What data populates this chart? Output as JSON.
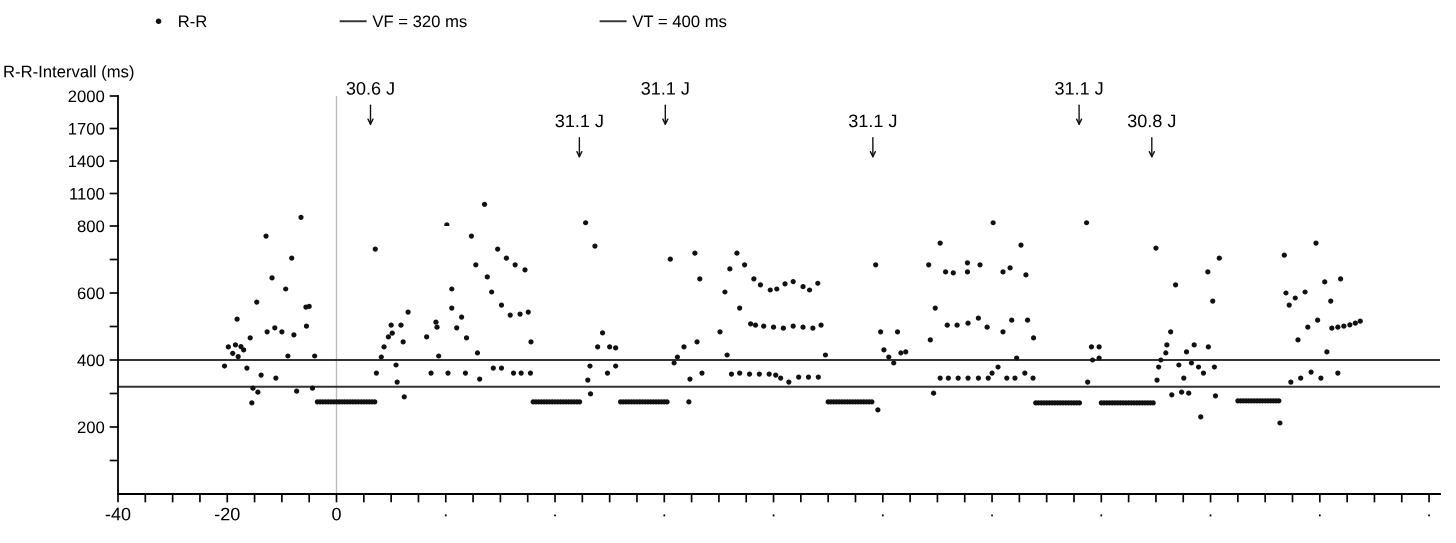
{
  "chart_data": [
    {
      "type": "scatter",
      "ylabel": "R-R-Intervall (ms)",
      "marker": "circle",
      "grid": false,
      "tick_labels": "y",
      "xlim": [
        -40,
        202
      ],
      "ylim": [
        800,
        2000
      ],
      "yticks": [
        1100,
        1400,
        1700,
        2000
      ],
      "ref_lines": [
        {
          "axis": "x",
          "value": 0,
          "color": "#bbbbbb"
        }
      ],
      "annotations": [
        "30.6 J",
        "31.1 J",
        "31.1 J",
        "31.1 J",
        "31.1 J",
        "30.8 J"
      ],
      "series": [
        {
          "color": "#111111",
          "x": [
            -6.5,
            20.2,
            27.1,
            45.6,
            120.2,
            137.3
          ],
          "values": [
            880,
            810,
            1000,
            830,
            830,
            830
          ]
        }
      ]
    },
    {
      "type": "scatter",
      "legend": "top left",
      "marker": "circle",
      "grid": false,
      "xlim": [
        -40,
        202
      ],
      "ylim": [
        0,
        800
      ],
      "xticks": [
        -40,
        {
          "value": -35,
          "label": null
        },
        {
          "value": -30,
          "label": null
        },
        {
          "value": -25,
          "label": null
        },
        -20,
        {
          "value": -15,
          "label": null
        },
        {
          "value": -10,
          "label": null
        },
        {
          "value": -5,
          "label": null
        },
        0,
        {
          "value": 5,
          "label": null
        },
        {
          "value": 10,
          "label": null
        },
        {
          "value": 15,
          "label": null
        },
        {
          "value": 20,
          "label": "·"
        },
        {
          "value": 25,
          "label": null
        },
        {
          "value": 30,
          "label": null
        },
        {
          "value": 35,
          "label": null
        },
        {
          "value": 40,
          "label": "·"
        },
        {
          "value": 45,
          "label": null
        },
        {
          "value": 50,
          "label": null
        },
        {
          "value": 55,
          "label": null
        },
        {
          "value": 60,
          "label": "·"
        },
        {
          "value": 65,
          "label": null
        },
        {
          "value": 70,
          "label": null
        },
        {
          "value": 75,
          "label": null
        },
        {
          "value": 80,
          "label": "·"
        },
        {
          "value": 85,
          "label": null
        },
        {
          "value": 90,
          "label": null
        },
        {
          "value": 95,
          "label": null
        },
        {
          "value": 100,
          "label": "·"
        },
        {
          "value": 105,
          "label": null
        },
        {
          "value": 110,
          "label": null
        },
        {
          "value": 115,
          "label": null
        },
        {
          "value": 120,
          "label": "·"
        },
        {
          "value": 125,
          "label": null
        },
        {
          "value": 130,
          "label": null
        },
        {
          "value": 135,
          "label": null
        },
        {
          "value": 140,
          "label": "·"
        },
        {
          "value": 145,
          "label": null
        },
        {
          "value": 150,
          "label": null
        },
        {
          "value": 155,
          "label": null
        },
        {
          "value": 160,
          "label": "·"
        },
        {
          "value": 165,
          "label": null
        },
        {
          "value": 170,
          "label": null
        },
        {
          "value": 175,
          "label": null
        },
        {
          "value": 180,
          "label": "·"
        },
        {
          "value": 185,
          "label": null
        },
        {
          "value": 190,
          "label": null
        },
        {
          "value": 195,
          "label": null
        },
        {
          "value": 200,
          "label": "·"
        }
      ],
      "yticks": [
        {
          "value": 100,
          "label": null
        },
        200,
        {
          "value": 300,
          "label": null
        },
        400,
        {
          "value": 500,
          "label": null
        },
        600,
        {
          "value": 700,
          "label": null
        },
        800
      ],
      "ref_lines": [
        {
          "axis": "y",
          "value": 320,
          "label": "VF = 320 ms",
          "color": "#333333"
        },
        {
          "axis": "y",
          "value": 400,
          "label": "VT = 400 ms",
          "color": "#333333"
        },
        {
          "axis": "x",
          "value": 0,
          "color": "#bbbbbb"
        }
      ],
      "series": [
        {
          "name": "R-R",
          "color": "#111111",
          "x": [
            -20.5,
            -19.8,
            -19,
            -18.5,
            -18,
            -17.5,
            -17,
            -18.2,
            -16.4,
            -15.8,
            -15.3,
            -15.5,
            -14.6,
            -13.8,
            -14.4,
            -12.9,
            -12.7,
            -11.8,
            -11.3,
            -11.1,
            -10,
            -9.3,
            -8.9,
            -8.2,
            -7.8,
            -7.3,
            -5.6,
            -5.0,
            -5.5,
            -4,
            -4.4,
            -3.5,
            -3,
            -2.5,
            -2,
            -1.5,
            -1,
            -0.5,
            0,
            0.5,
            1,
            1.5,
            2,
            2.5,
            3,
            3.5,
            4,
            4.5,
            5,
            5.5,
            6,
            6.5,
            7,
            7.1,
            7.3,
            8.2,
            8.7,
            9.5,
            10.2,
            10,
            11.8,
            10.9,
            11.1,
            12.2,
            12.4,
            13.1,
            16.5,
            17.3,
            18.2,
            18.4,
            18.7,
            20.4,
            21.1,
            21.1,
            22,
            22.9,
            23.6,
            23.8,
            24.7,
            25.5,
            25.8,
            26.2,
            27.6,
            28.4,
            28.7,
            30.2,
            29.5,
            30.2,
            31.1,
            31.8,
            32.7,
            32.4,
            33.8,
            35.5,
            33.6,
            35.1,
            34.5,
            35.6,
            36,
            36.5,
            37,
            37.5,
            38,
            38.5,
            39,
            39.5,
            40,
            40.5,
            41,
            41.5,
            42,
            42.5,
            43,
            43.5,
            44,
            44.5,
            47.3,
            46,
            46.4,
            46.5,
            47.8,
            48.7,
            50,
            51.1,
            49.6,
            51.1,
            52,
            52.5,
            53,
            53.5,
            54,
            54.5,
            55,
            55.5,
            56,
            56.5,
            57,
            57.5,
            58,
            58.5,
            59,
            59.5,
            60,
            60.5,
            61.1,
            61.8,
            62.4,
            63.6,
            66,
            64.5,
            64.7,
            65.6,
            66.5,
            66.9,
            70.2,
            71.1,
            71.5,
            72,
            73.3,
            73.8,
            74.7,
            76.4,
            77.6,
            79.4,
            80.6,
            82.1,
            83.6,
            85.4,
            86.6,
            88.1,
            75.8,
            76.7,
            78.2,
            80,
            81.8,
            83.6,
            85.4,
            87.2,
            88.7,
            72.3,
            73.8,
            75.6,
            77.4,
            79.2,
            80.4,
            81.3,
            82.8,
            84.6,
            86.4,
            88.2,
            89.5,
            90,
            90.5,
            91,
            91.5,
            92,
            92.5,
            93,
            93.5,
            94,
            94.5,
            95,
            95.5,
            96,
            96.5,
            97,
            97.5,
            98,
            99.1,
            98.7,
            99.6,
            100.2,
            101.1,
            102,
            102.7,
            103.3,
            104.2,
            108.7,
            109.3,
            108.4,
            109.6,
            110.5,
            110.5,
            112,
            113.8,
            115.6,
            117.5,
            119.3,
            111.5,
            112.9,
            115.5,
            117.8,
            115.5,
            111.8,
            113.6,
            115.6,
            117.5,
            119.1,
            125.3,
            122,
            123.3,
            126.2,
            122,
            123.6,
            126.5,
            127.6,
            124.5,
            121.1,
            120,
            122.7,
            124.2,
            126,
            127.5,
            128,
            128.5,
            129,
            129.5,
            130,
            130.5,
            131,
            131.5,
            132,
            132.5,
            133,
            133.5,
            134,
            134.5,
            135,
            135.5,
            136,
            138.2,
            139.6,
            138.4,
            139.6,
            137.5,
            140,
            140.5,
            141,
            141.5,
            142,
            142.5,
            143,
            143.5,
            144,
            144.5,
            145,
            145.5,
            146,
            146.5,
            147,
            147.5,
            148,
            148.5,
            149,
            149.5,
            150,
            150.2,
            150.5,
            150.9,
            151.8,
            152,
            152.7,
            153.6,
            152.9,
            154.7,
            156,
            155.1,
            154.2,
            155.6,
            157,
            156.5,
            157.8,
            158.7,
            158.2,
            159.5,
            159.6,
            160.4,
            160.7,
            160.9,
            161.6,
            165,
            165.5,
            166,
            166.5,
            167,
            167.5,
            168,
            168.5,
            169,
            169.5,
            170,
            170.5,
            171,
            171.5,
            172,
            172.5,
            172.7,
            173.5,
            173.8,
            175.5,
            174.4,
            177.3,
            174.7,
            176.5,
            178.4,
            180.2,
            183.3,
            176,
            177.8,
            179.6,
            179.3,
            180.9,
            183.8,
            182,
            181.3,
            182.2,
            183.3,
            184.4,
            185.5,
            186.5,
            187.4
          ],
          "values": [
            382,
            439,
            420,
            445,
            410,
            440,
            430,
            522,
            376,
            466,
            316,
            272,
            573,
            355,
            304,
            770,
            484,
            645,
            496,
            346,
            484,
            612,
            412,
            704,
            475,
            307,
            558,
            560,
            501,
            412,
            316,
            275,
            275,
            275,
            275,
            275,
            275,
            275,
            275,
            275,
            275,
            275,
            275,
            275,
            275,
            275,
            275,
            275,
            275,
            275,
            275,
            275,
            275,
            731,
            361,
            409,
            439,
            469,
            480,
            504,
            504,
            385,
            334,
            454,
            290,
            543,
            469,
            361,
            513,
            498,
            412,
            361,
            612,
            555,
            496,
            528,
            361,
            466,
            770,
            684,
            421,
            343,
            648,
            603,
            376,
            376,
            731,
            564,
            704,
            534,
            684,
            361,
            361,
            361,
            537,
            543,
            669,
            454,
            275,
            275,
            275,
            275,
            275,
            275,
            275,
            275,
            275,
            275,
            275,
            275,
            275,
            275,
            275,
            275,
            275,
            275,
            740,
            340,
            382,
            299,
            439,
            481,
            439,
            436,
            361,
            382,
            275,
            275,
            275,
            275,
            275,
            275,
            275,
            275,
            275,
            275,
            275,
            275,
            275,
            275,
            275,
            275,
            275,
            275,
            701,
            391,
            409,
            439,
            454,
            275,
            343,
            719,
            642,
            361,
            484,
            603,
            415,
            672,
            719,
            555,
            684,
            642,
            624,
            609,
            612,
            627,
            634,
            619,
            609,
            629,
            508,
            504,
            501,
            498,
            495,
            501,
            498,
            495,
            504,
            358,
            361,
            358,
            358,
            358,
            355,
            346,
            334,
            349,
            349,
            349,
            415,
            275,
            275,
            275,
            275,
            275,
            275,
            275,
            275,
            275,
            275,
            275,
            275,
            275,
            275,
            275,
            275,
            275,
            251,
            684,
            484,
            430,
            409,
            391,
            484,
            421,
            424,
            460,
            301,
            684,
            555,
            749,
            346,
            346,
            346,
            346,
            346,
            346,
            663,
            660,
            663,
            684,
            690,
            504,
            504,
            510,
            525,
            498,
            743,
            663,
            675,
            654,
            484,
            519,
            519,
            466,
            406,
            379,
            361,
            346,
            346,
            361,
            346,
            272,
            272,
            272,
            272,
            272,
            272,
            272,
            272,
            272,
            272,
            272,
            272,
            272,
            272,
            272,
            272,
            272,
            439,
            439,
            400,
            406,
            334,
            272,
            272,
            272,
            272,
            272,
            272,
            272,
            272,
            272,
            272,
            272,
            272,
            272,
            272,
            272,
            272,
            272,
            272,
            272,
            272,
            734,
            340,
            379,
            400,
            421,
            445,
            484,
            624,
            296,
            304,
            301,
            346,
            385,
            424,
            445,
            391,
            379,
            361,
            230,
            663,
            439,
            576,
            379,
            293,
            704,
            278,
            278,
            278,
            278,
            278,
            278,
            278,
            278,
            278,
            278,
            278,
            278,
            278,
            278,
            278,
            278,
            212,
            713,
            600,
            585,
            564,
            603,
            334,
            346,
            364,
            346,
            361,
            460,
            498,
            519,
            749,
            633,
            642,
            576,
            424,
            495,
            498,
            501,
            505,
            510,
            516
          ]
        }
      ]
    }
  ]
}
